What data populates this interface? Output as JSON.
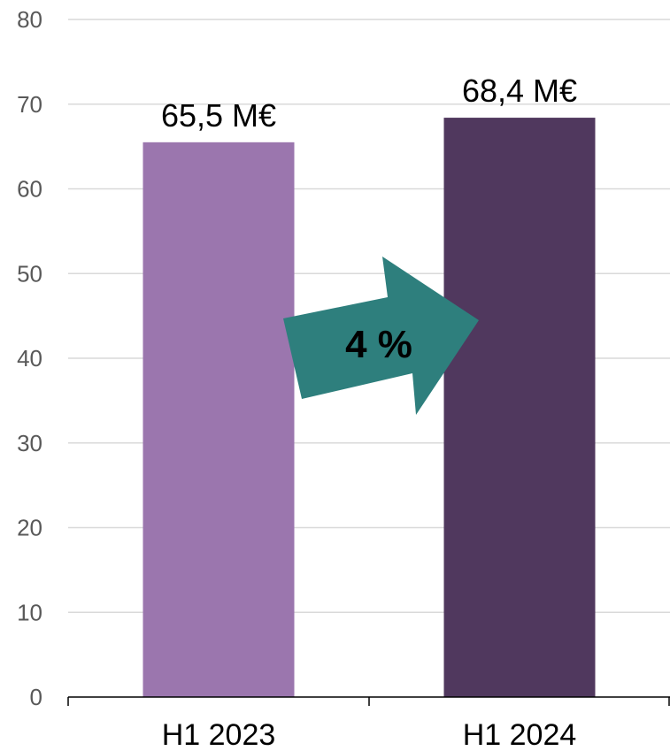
{
  "chart_data": {
    "type": "bar",
    "categories": [
      "H1 2023",
      "H1 2024"
    ],
    "values": [
      65.5,
      68.4
    ],
    "data_labels": [
      "65,5 M€",
      "68,4 M€"
    ],
    "bar_colors": [
      "#9b76ae",
      "#50385e"
    ],
    "ylim": [
      0,
      80
    ],
    "yticks": [
      0,
      10,
      20,
      30,
      40,
      50,
      60,
      70,
      80
    ],
    "grid": true,
    "title": "",
    "xlabel": "",
    "ylabel": "",
    "annotation": {
      "text": "4 %",
      "shape": "arrow-right",
      "color": "#2e7f7d"
    }
  }
}
